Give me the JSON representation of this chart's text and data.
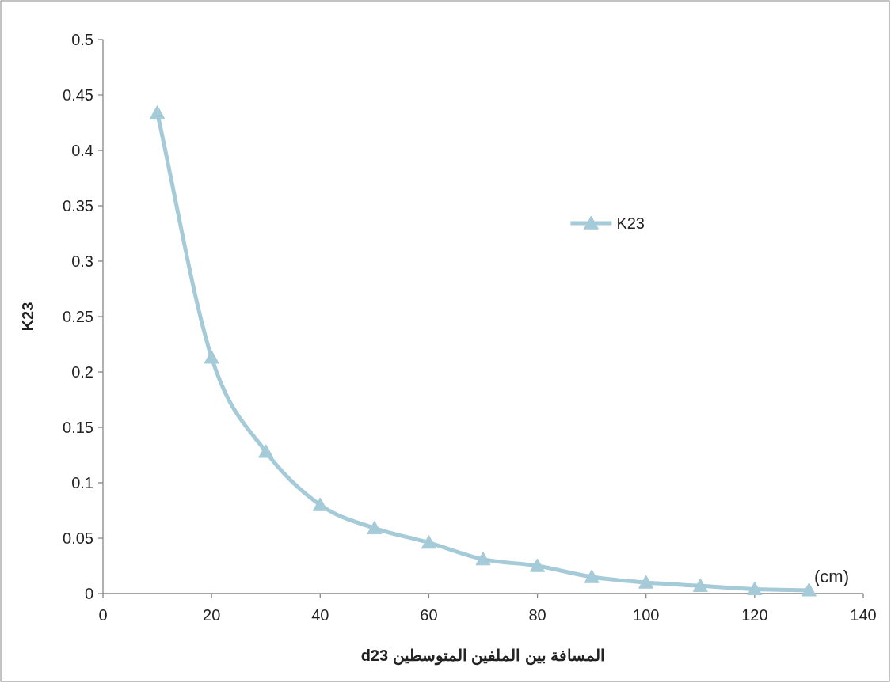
{
  "chart_data": {
    "type": "line",
    "xlabel": "المسافة بين الملفين المتوسطين d23",
    "ylabel": "K23",
    "x": [
      10,
      20,
      30,
      40,
      50,
      60,
      70,
      80,
      90,
      100,
      110,
      120,
      130
    ],
    "series": [
      {
        "name": "K23",
        "color": "#a5cad8",
        "values": [
          0.434,
          0.213,
          0.128,
          0.08,
          0.059,
          0.046,
          0.031,
          0.025,
          0.015,
          0.01,
          0.007,
          0.004,
          0.003
        ]
      }
    ],
    "xlim": [
      0,
      140
    ],
    "ylim": [
      0,
      0.5
    ],
    "xticks": [
      0,
      20,
      40,
      60,
      80,
      100,
      120,
      140
    ],
    "yticks": [
      0,
      0.05,
      0.1,
      0.15,
      0.2,
      0.25,
      0.3,
      0.35,
      0.4,
      0.45,
      0.5
    ],
    "annotations": [
      "(cm)"
    ],
    "legend": "right",
    "marker": "triangle",
    "grid": false
  }
}
